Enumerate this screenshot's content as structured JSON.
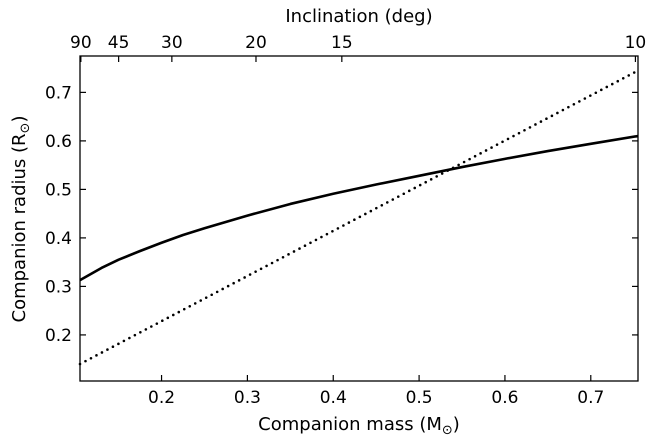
{
  "chart_data": {
    "type": "line",
    "xlabel": "Companion mass (M",
    "xlabel_sub": "⊙",
    "xlabel_close": ")",
    "ylabel": "Companion radius (R",
    "ylabel_sub": "⊙",
    "ylabel_close": ")",
    "top_xlabel": "Inclination (deg)",
    "xlim": [
      0.105,
      0.755
    ],
    "ylim": [
      0.105,
      0.775
    ],
    "xticks": [
      0.2,
      0.3,
      0.4,
      0.5,
      0.6,
      0.7
    ],
    "xtick_labels": [
      "0.2",
      "0.3",
      "0.4",
      "0.5",
      "0.6",
      "0.7"
    ],
    "yticks": [
      0.2,
      0.3,
      0.4,
      0.5,
      0.6,
      0.7
    ],
    "ytick_labels": [
      "0.2",
      "0.3",
      "0.4",
      "0.5",
      "0.6",
      "0.7"
    ],
    "top_ticks": [
      {
        "label": "90",
        "mass": 0.106
      },
      {
        "label": "45",
        "mass": 0.15
      },
      {
        "label": "30",
        "mass": 0.212
      },
      {
        "label": "20",
        "mass": 0.31
      },
      {
        "label": "15",
        "mass": 0.41
      },
      {
        "label": "10",
        "mass": 0.752
      }
    ],
    "grid": false,
    "series": [
      {
        "style": "solid",
        "color": "#000000",
        "x": [
          0.105,
          0.13,
          0.15,
          0.175,
          0.2,
          0.225,
          0.25,
          0.3,
          0.35,
          0.4,
          0.45,
          0.5,
          0.55,
          0.6,
          0.65,
          0.7,
          0.755
        ],
        "y": [
          0.313,
          0.338,
          0.355,
          0.373,
          0.39,
          0.406,
          0.42,
          0.446,
          0.47,
          0.491,
          0.51,
          0.528,
          0.546,
          0.563,
          0.579,
          0.594,
          0.61
        ]
      },
      {
        "style": "dotted",
        "color": "#000000",
        "x": [
          0.105,
          0.755
        ],
        "y": [
          0.14,
          0.745
        ]
      }
    ]
  }
}
